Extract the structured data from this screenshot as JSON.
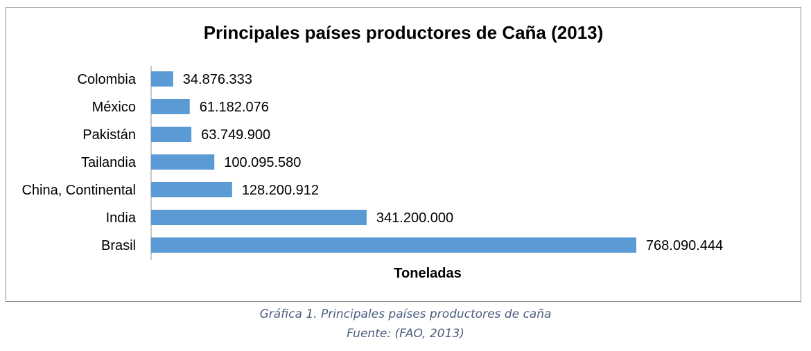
{
  "chart_data": {
    "type": "bar",
    "orientation": "horizontal",
    "title": "Principales países productores de Caña (2013)",
    "xlabel": "Toneladas",
    "ylabel": "",
    "categories": [
      "Colombia",
      "México",
      "Pakistán",
      "Tailandia",
      "China, Continental",
      "India",
      "Brasil"
    ],
    "values": [
      34876333,
      61182076,
      63749900,
      100095580,
      128200912,
      341200000,
      768090444
    ],
    "value_labels": [
      "34.876.333",
      "61.182.076",
      "63.749.900",
      "100.095.580",
      "128.200.912",
      "341.200.000",
      "768.090.444"
    ],
    "xlim": [
      0,
      845000000
    ],
    "bar_color": "#5b9bd5",
    "grid": false,
    "legend": "none"
  },
  "caption": {
    "line1": "Gráfica 1. Principales países productores de caña",
    "line2": "Fuente: (FAO, 2013)"
  }
}
